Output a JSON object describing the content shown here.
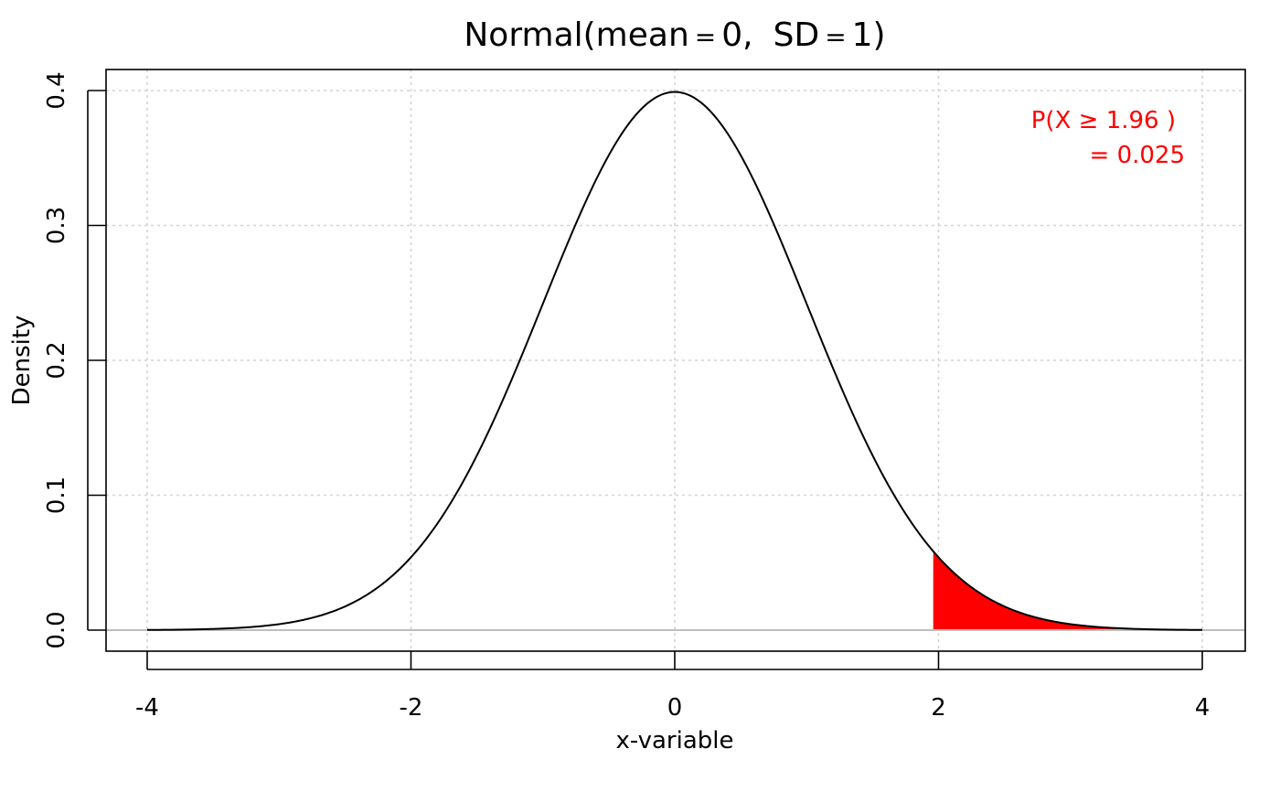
{
  "chart_data": {
    "type": "area",
    "distribution": "normal",
    "mean": 0,
    "sd": 1,
    "title": {
      "prefix": "Normal(mean",
      "op1": "=",
      "mean_value": "0,",
      "sd_label": "SD",
      "op2": "=",
      "sd_value": "1)"
    },
    "xlabel": "x-variable",
    "ylabel": "Density",
    "xlim": [
      -4,
      4
    ],
    "ylim": [
      0,
      0.4
    ],
    "x_ticks": [
      -4,
      -2,
      0,
      2,
      4
    ],
    "x_tick_labels": [
      "-4",
      "-2",
      "0",
      "2",
      "4"
    ],
    "y_ticks": [
      0,
      0.1,
      0.2,
      0.3,
      0.4
    ],
    "y_tick_labels": [
      "0.0",
      "0.1",
      "0.2",
      "0.3",
      "0.4"
    ],
    "grid": true,
    "shaded_region": {
      "from": 1.96,
      "to": 4,
      "color": "#ff0000",
      "probability": 0.025
    },
    "annotation": {
      "line1": "P(X ≥ 1.96 )",
      "line2": "= 0.025",
      "color": "#ff0000",
      "placement": "top-right"
    },
    "curve_color": "#000000",
    "baseline_color": "#bebebe",
    "grid_color": "#d3d3d3"
  }
}
